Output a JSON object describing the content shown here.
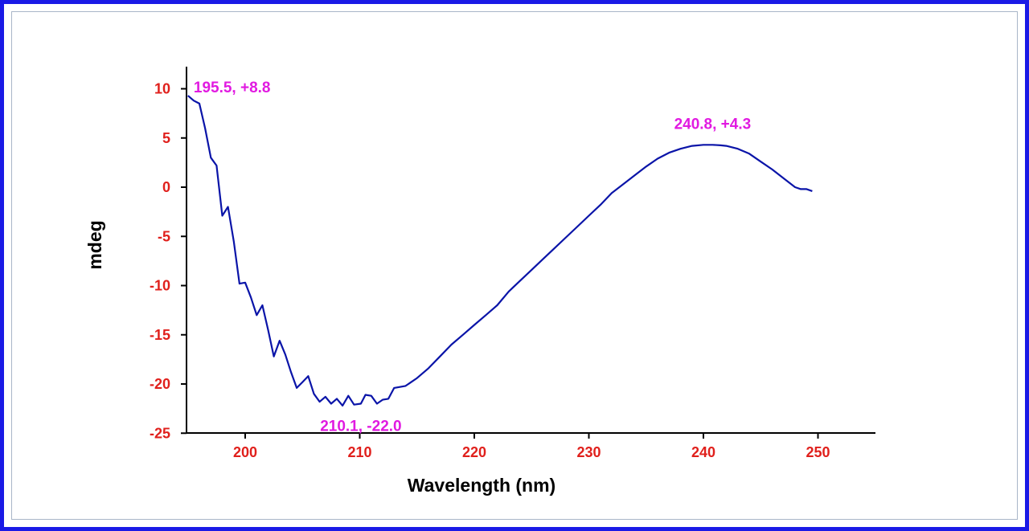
{
  "chart_data": {
    "type": "line",
    "title": "",
    "xlabel": "Wavelength (nm)",
    "ylabel": "mdeg",
    "xlim": [
      195,
      255
    ],
    "ylim": [
      -25,
      12
    ],
    "xticks": [
      200,
      210,
      220,
      230,
      240,
      250
    ],
    "yticks": [
      10,
      5,
      0,
      -5,
      -10,
      -15,
      -20,
      -25
    ],
    "grid": false,
    "series": [
      {
        "color": "#0a14a8",
        "x": [
          195.0,
          195.5,
          196.0,
          196.5,
          197.0,
          197.5,
          198.0,
          198.5,
          199.0,
          199.5,
          200.0,
          200.5,
          201.0,
          201.5,
          202.0,
          202.5,
          203.0,
          203.5,
          204.0,
          204.5,
          205.0,
          205.5,
          206.0,
          206.5,
          207.0,
          207.5,
          208.0,
          208.5,
          209.0,
          209.5,
          210.1,
          210.5,
          211.0,
          211.5,
          212.0,
          212.5,
          213.0,
          214.0,
          215.0,
          216.0,
          217.0,
          218.0,
          219.0,
          220.0,
          221.0,
          222.0,
          223.0,
          224.0,
          225.0,
          226.0,
          227.0,
          228.0,
          229.0,
          230.0,
          231.0,
          232.0,
          233.0,
          234.0,
          235.0,
          236.0,
          237.0,
          238.0,
          239.0,
          240.0,
          240.8,
          241.5,
          242.0,
          243.0,
          244.0,
          245.0,
          246.0,
          247.0,
          248.0,
          248.5,
          249.0,
          249.5
        ],
        "y": [
          9.3,
          8.8,
          8.5,
          6.0,
          3.0,
          2.2,
          -2.9,
          -2.0,
          -5.5,
          -9.8,
          -9.7,
          -11.2,
          -13.0,
          -12.0,
          -14.5,
          -17.2,
          -15.6,
          -17.0,
          -18.8,
          -20.4,
          -19.8,
          -19.2,
          -21.0,
          -21.8,
          -21.3,
          -22.0,
          -21.5,
          -22.2,
          -21.2,
          -22.1,
          -22.0,
          -21.1,
          -21.2,
          -22.0,
          -21.6,
          -21.5,
          -20.4,
          -20.2,
          -19.4,
          -18.4,
          -17.2,
          -16.0,
          -15.0,
          -14.0,
          -13.0,
          -12.0,
          -10.6,
          -9.5,
          -8.4,
          -7.3,
          -6.2,
          -5.1,
          -4.0,
          -2.9,
          -1.8,
          -0.6,
          0.3,
          1.2,
          2.1,
          2.9,
          3.5,
          3.9,
          4.2,
          4.3,
          4.3,
          4.25,
          4.2,
          3.9,
          3.4,
          2.6,
          1.8,
          0.9,
          0.0,
          -0.2,
          -0.2,
          -0.4
        ]
      }
    ],
    "annotations": [
      {
        "text": "195.5, +8.8",
        "x": 195.5,
        "y": 8.8
      },
      {
        "text": "210.1, -22.0",
        "x": 210.1,
        "y": -22.0
      },
      {
        "text": "240.8, +4.3",
        "x": 240.8,
        "y": 4.3
      }
    ]
  }
}
